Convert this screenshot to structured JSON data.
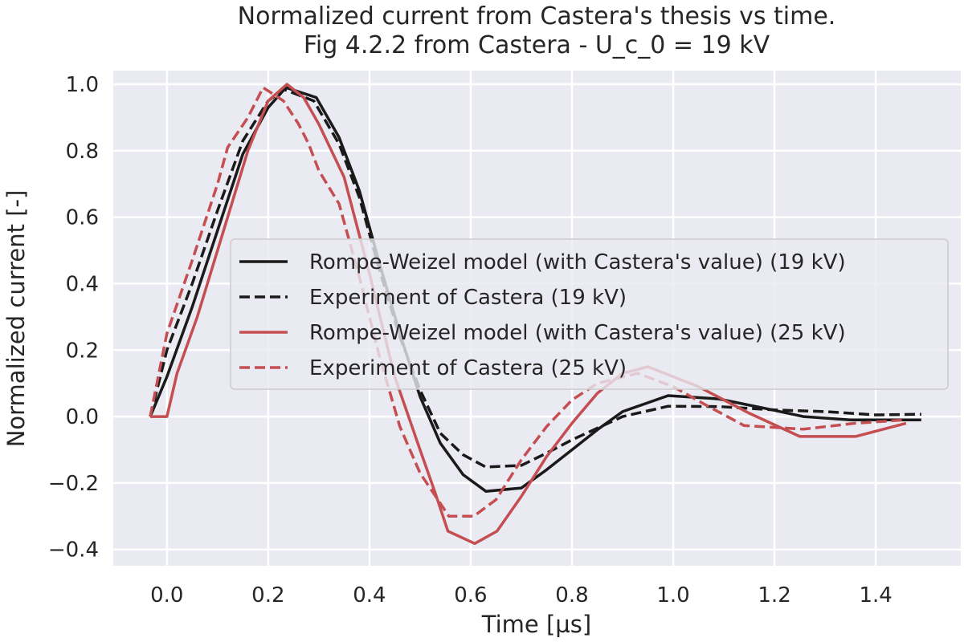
{
  "chart_data": {
    "type": "line",
    "title": "Normalized current from Castera's thesis vs time.",
    "subtitle": "Fig 4.2.2 from Castera - U_c_0 = 19 kV",
    "xlabel": "Time [µs]",
    "ylabel": "Normalized current [-]",
    "xlim": [
      -0.106,
      1.568
    ],
    "ylim": [
      -0.449,
      1.041
    ],
    "xticks": [
      0.0,
      0.2,
      0.4,
      0.6,
      0.8,
      1.0,
      1.2,
      1.4
    ],
    "xtick_labels": [
      "0.0",
      "0.2",
      "0.4",
      "0.6",
      "0.8",
      "1.0",
      "1.2",
      "1.4"
    ],
    "yticks": [
      -0.4,
      -0.2,
      0.0,
      0.2,
      0.4,
      0.6,
      0.8,
      1.0
    ],
    "ytick_labels": [
      "−0.4",
      "−0.2",
      "0.0",
      "0.2",
      "0.4",
      "0.6",
      "0.8",
      "1.0"
    ],
    "grid": true,
    "background": "#eaeaf2",
    "legend_placement": "center-right",
    "series": [
      {
        "name": "Rompe-Weizel model (with Castera's value) (19 kV)",
        "color": "#1a1a1a",
        "dash": "solid",
        "x": [
          -0.033,
          0,
          0.05,
          0.1,
          0.15,
          0.2,
          0.235,
          0.295,
          0.34,
          0.38,
          0.42,
          0.46,
          0.5,
          0.54,
          0.585,
          0.63,
          0.7,
          0.75,
          0.8,
          0.85,
          0.9,
          0.99,
          1.09,
          1.18,
          1.257,
          1.35,
          1.49
        ],
        "y": [
          0,
          0.12,
          0.33,
          0.56,
          0.79,
          0.93,
          0.99,
          0.96,
          0.84,
          0.68,
          0.46,
          0.25,
          0.06,
          -0.08,
          -0.175,
          -0.225,
          -0.215,
          -0.16,
          -0.1,
          -0.04,
          0.015,
          0.063,
          0.053,
          0.025,
          0,
          -0.01,
          -0.01
        ]
      },
      {
        "name": "Experiment of Castera (19 kV)",
        "color": "#1a1a1a",
        "dash": "dashed",
        "x": [
          -0.033,
          0,
          0.05,
          0.1,
          0.15,
          0.2,
          0.23,
          0.29,
          0.34,
          0.38,
          0.42,
          0.46,
          0.5,
          0.54,
          0.585,
          0.63,
          0.7,
          0.75,
          0.8,
          0.9,
          0.99,
          1.09,
          1.2,
          1.3,
          1.4,
          1.49
        ],
        "y": [
          0,
          0.2,
          0.4,
          0.62,
          0.83,
          0.95,
          0.985,
          0.95,
          0.82,
          0.66,
          0.44,
          0.24,
          0.08,
          -0.05,
          -0.115,
          -0.152,
          -0.147,
          -0.11,
          -0.07,
          0,
          0.031,
          0.03,
          0.02,
          0.015,
          0.005,
          0.007
        ]
      },
      {
        "name": "Rompe-Weizel model (with Castera's value) (25 kV)",
        "color": "#c44e52",
        "dash": "solid",
        "x": [
          -0.033,
          0,
          0.02,
          0.06,
          0.12,
          0.16,
          0.2,
          0.237,
          0.27,
          0.3,
          0.35,
          0.4,
          0.45,
          0.5,
          0.53,
          0.555,
          0.608,
          0.652,
          0.7,
          0.75,
          0.8,
          0.85,
          0.9,
          0.95,
          1.05,
          1.15,
          1.25,
          1.36,
          1.46
        ],
        "y": [
          0,
          0,
          0.13,
          0.3,
          0.6,
          0.8,
          0.95,
          1.0,
          0.96,
          0.88,
          0.72,
          0.43,
          0.12,
          -0.1,
          -0.23,
          -0.345,
          -0.382,
          -0.345,
          -0.24,
          -0.12,
          -0.02,
          0.07,
          0.13,
          0.15,
          0.09,
          0.01,
          -0.06,
          -0.06,
          -0.02
        ]
      },
      {
        "name": "Experiment of Castera (25 kV)",
        "color": "#c44e52",
        "dash": "dashed",
        "x": [
          -0.033,
          0,
          0.05,
          0.1,
          0.12,
          0.16,
          0.19,
          0.23,
          0.26,
          0.28,
          0.3,
          0.34,
          0.38,
          0.42,
          0.46,
          0.5,
          0.557,
          0.606,
          0.65,
          0.7,
          0.75,
          0.8,
          0.85,
          0.93,
          1.0,
          1.07,
          1.14,
          1.257,
          1.36,
          1.46
        ],
        "y": [
          0,
          0.25,
          0.47,
          0.7,
          0.81,
          0.9,
          0.99,
          0.95,
          0.88,
          0.82,
          0.74,
          0.64,
          0.42,
          0.18,
          -0.03,
          -0.17,
          -0.3,
          -0.3,
          -0.25,
          -0.13,
          -0.03,
          0.05,
          0.1,
          0.13,
          0.09,
          0.03,
          -0.027,
          -0.038,
          -0.02,
          -0.01
        ]
      }
    ]
  }
}
